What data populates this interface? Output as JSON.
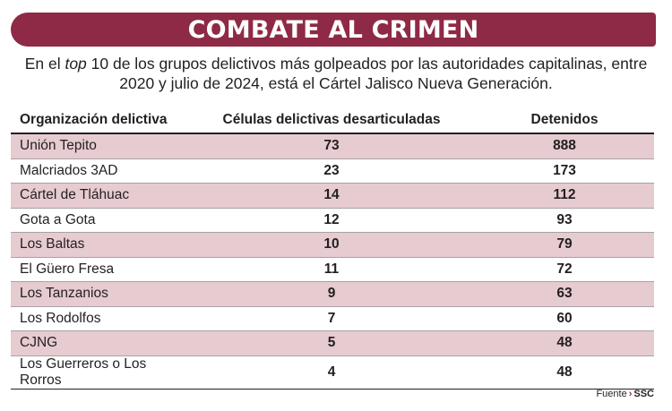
{
  "title": "COMBATE AL CRIMEN",
  "subtitle": {
    "before": "En el ",
    "italic": "top",
    "after": " 10 de los grupos delictivos más golpeados por las autoridades capitalinas, entre 2020 y julio de 2024, está el Cártel Jalisco Nueva Generación."
  },
  "colors": {
    "title_bar": "#8e2a45",
    "row_shade": "#e6cbd1"
  },
  "chart_data": {
    "type": "table",
    "columns": [
      "Organización delictiva",
      "Células delictivas desarticuladas",
      "Detenidos"
    ],
    "rows": [
      [
        "Unión Tepito",
        "73",
        "888"
      ],
      [
        "Malcriados 3AD",
        "23",
        "173"
      ],
      [
        "Cártel de Tláhuac",
        "14",
        "112"
      ],
      [
        "Gota a Gota",
        "12",
        "93"
      ],
      [
        "Los Baltas",
        "10",
        "79"
      ],
      [
        "El Güero Fresa",
        "11",
        "72"
      ],
      [
        "Los Tanzanios",
        "9",
        "63"
      ],
      [
        "Los Rodolfos",
        "7",
        "60"
      ],
      [
        "CJNG",
        "5",
        "48"
      ],
      [
        "Los Guerreros o Los Rorros",
        "4",
        "48"
      ]
    ]
  },
  "source": {
    "label": "Fuente",
    "org": "SSC"
  }
}
